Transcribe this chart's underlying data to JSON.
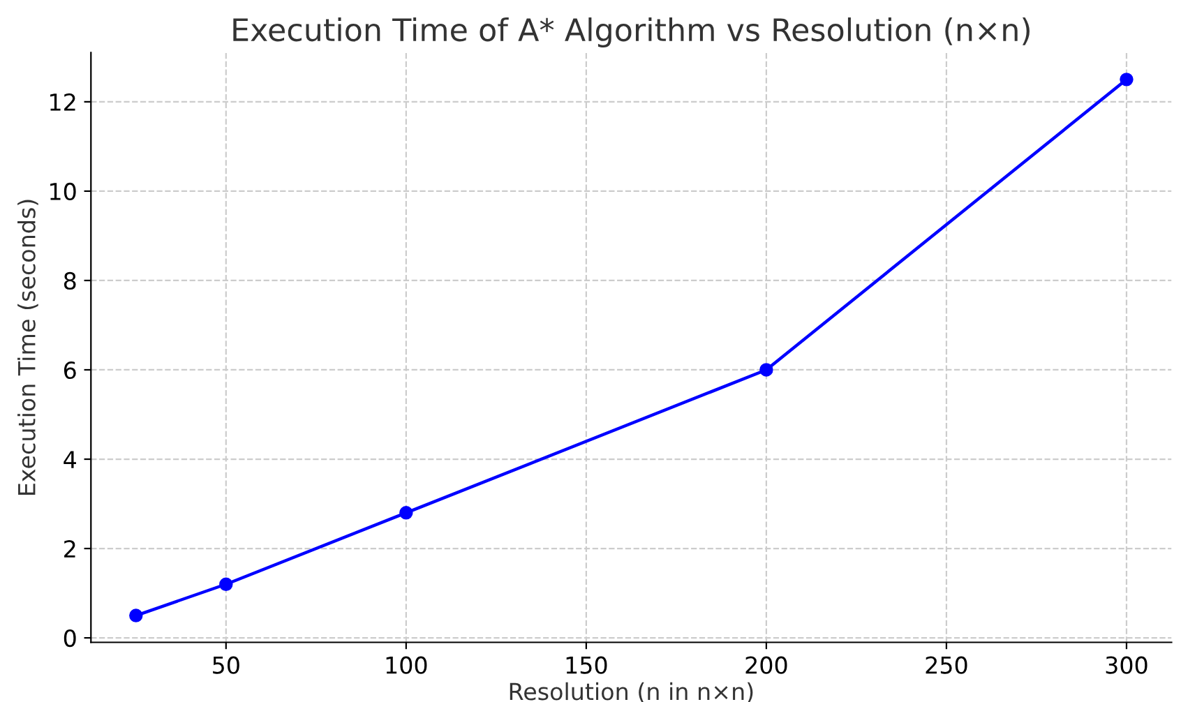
{
  "chart_data": {
    "type": "line",
    "title": "Execution Time of A* Algorithm vs Resolution (n×n)",
    "xlabel": "Resolution (n in n×n)",
    "ylabel": "Execution Time (seconds)",
    "x": [
      25,
      50,
      100,
      200,
      300
    ],
    "series": [
      {
        "color": "#0000ff",
        "values": [
          0.5,
          1.2,
          2.8,
          6.0,
          12.5
        ]
      }
    ],
    "xlim": [
      12.5,
      312.5
    ],
    "xticks": [
      50,
      100,
      150,
      200,
      250,
      300
    ],
    "ylim": [
      -0.1,
      13.1
    ],
    "yticks": [
      0,
      2,
      4,
      6,
      8,
      10,
      12
    ],
    "grid": true,
    "marker": "circle",
    "line_style": "solid"
  }
}
